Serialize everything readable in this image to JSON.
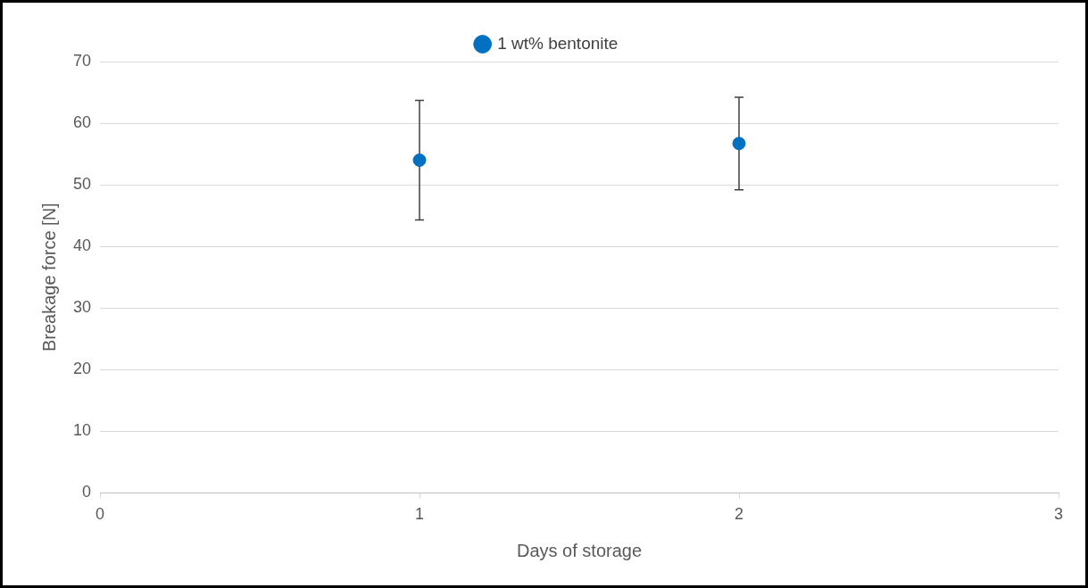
{
  "chart_data": {
    "type": "scatter",
    "xlabel": "Days of storage",
    "ylabel": "Breakage force [N]",
    "x": [
      1,
      2
    ],
    "series": [
      {
        "name": "1 wt% bentonite",
        "color": "#0070c0",
        "values": [
          54.0,
          56.7
        ],
        "errors": [
          9.7,
          7.5
        ]
      }
    ],
    "xlim": [
      0,
      3
    ],
    "xticks": [
      0,
      1,
      2,
      3
    ],
    "ylim": [
      0,
      70
    ],
    "yticks": [
      0,
      10,
      20,
      30,
      40,
      50,
      60,
      70
    ],
    "grid": "y",
    "legend": "top",
    "marker": "circle"
  }
}
